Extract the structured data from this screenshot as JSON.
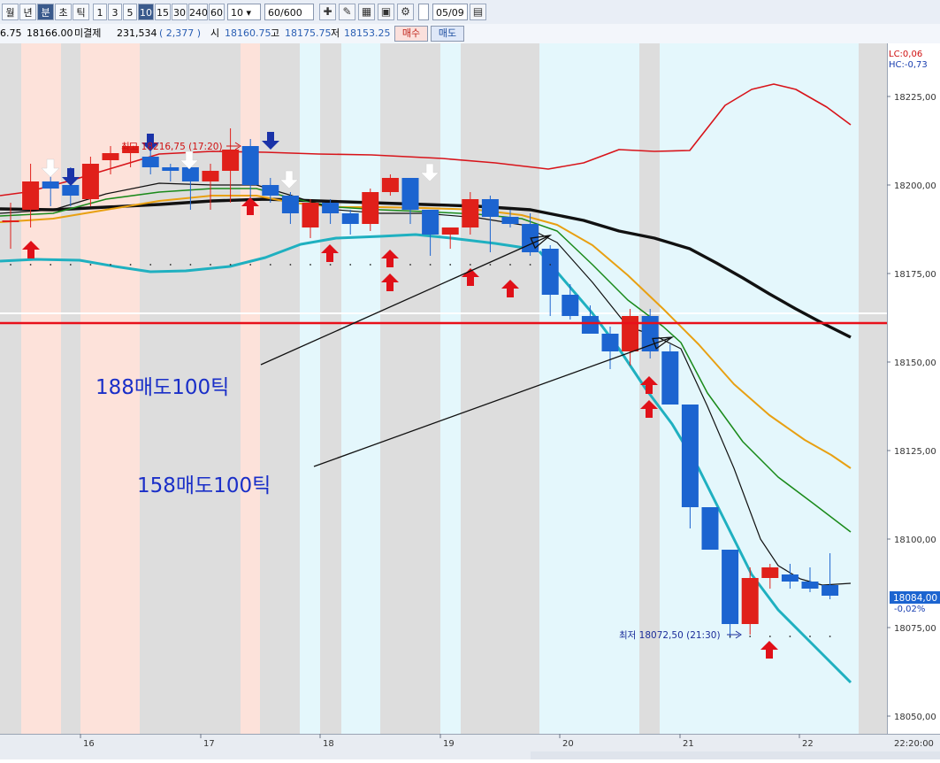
{
  "toolbar": {
    "period_buttons": [
      {
        "label": "월",
        "active": false
      },
      {
        "label": "년",
        "active": false
      },
      {
        "label": "분",
        "active": true
      },
      {
        "label": "초",
        "active": false
      },
      {
        "label": "틱",
        "active": false
      }
    ],
    "interval_buttons": [
      {
        "label": "1",
        "active": false
      },
      {
        "label": "3",
        "active": false
      },
      {
        "label": "5",
        "active": false
      },
      {
        "label": "10",
        "active": true
      },
      {
        "label": "15",
        "active": false
      },
      {
        "label": "30",
        "active": false
      },
      {
        "label": "240",
        "active": false
      },
      {
        "label": "60",
        "active": false
      }
    ],
    "interval_select": "10",
    "count_input": "60",
    "count_max": "/600",
    "tool_icons": [
      "crosshair-icon",
      "draw-tool-icon",
      "calendar-grid-icon",
      "save-icon",
      "gear-icon"
    ],
    "date_input": "05/09"
  },
  "quote": {
    "prev_price": "6.75",
    "price": "18166.00",
    "unfilled_label": "미결제",
    "unfilled_value": "231,534",
    "unfilled_change": "( 2,377 )",
    "open_label": "시",
    "open_value": "18160.75",
    "high_label": "고",
    "high_value": "18175.75",
    "low_label": "저",
    "low_value": "18153.25",
    "buy_label": "매수",
    "sell_label": "매도"
  },
  "chart_data": {
    "type": "candlestick",
    "y_axis": {
      "min": 18050,
      "max": 18240,
      "tick_labels": [
        "18225,00",
        "18200,00",
        "18175,00",
        "18150,00",
        "18125,00",
        "18100,00",
        "18075,00",
        "18050,00"
      ]
    },
    "x_axis": {
      "tick_labels": [
        "16",
        "17",
        "18",
        "19",
        "20",
        "21",
        "22"
      ],
      "end_label": "22:20:00"
    },
    "corner_labels": {
      "lc": "LC:0,06",
      "hc": "HC:-0,73"
    },
    "current_price_label": "18084,00",
    "current_change_label": "-0,02%",
    "high_annotation": "최고 18216,75 (17:20)",
    "low_annotation": "최저 18072,50 (21:30)",
    "horizontal_line_price": 18161,
    "annotation_1": "188매도100틱",
    "annotation_2": "158매도100틱",
    "candles": [
      {
        "o": 18190,
        "h": 18195,
        "l": 18182,
        "c": 18190
      },
      {
        "o": 18193,
        "h": 18206,
        "l": 18188,
        "c": 18201
      },
      {
        "o": 18201,
        "h": 18203,
        "l": 18194,
        "c": 18199
      },
      {
        "o": 18200,
        "h": 18205,
        "l": 18194,
        "c": 18197
      },
      {
        "o": 18196,
        "h": 18208,
        "l": 18194,
        "c": 18206
      },
      {
        "o": 18207,
        "h": 18211,
        "l": 18203,
        "c": 18209
      },
      {
        "o": 18209,
        "h": 18212,
        "l": 18205,
        "c": 18211
      },
      {
        "o": 18208,
        "h": 18212,
        "l": 18203,
        "c": 18205
      },
      {
        "o": 18205,
        "h": 18206,
        "l": 18201,
        "c": 18204
      },
      {
        "o": 18205,
        "h": 18207,
        "l": 18193,
        "c": 18201
      },
      {
        "o": 18201,
        "h": 18206,
        "l": 18193,
        "c": 18204
      },
      {
        "o": 18204,
        "h": 18216,
        "l": 18195,
        "c": 18210
      },
      {
        "o": 18211,
        "h": 18213,
        "l": 18196,
        "c": 18200
      },
      {
        "o": 18200,
        "h": 18202,
        "l": 18195,
        "c": 18197
      },
      {
        "o": 18197,
        "h": 18198,
        "l": 18189,
        "c": 18192
      },
      {
        "o": 18188,
        "h": 18196,
        "l": 18185,
        "c": 18195
      },
      {
        "o": 18195,
        "h": 18196,
        "l": 18189,
        "c": 18192
      },
      {
        "o": 18192,
        "h": 18193,
        "l": 18186,
        "c": 18189
      },
      {
        "o": 18189,
        "h": 18199,
        "l": 18187,
        "c": 18198
      },
      {
        "o": 18198,
        "h": 18203,
        "l": 18197,
        "c": 18202
      },
      {
        "o": 18202,
        "h": 18202,
        "l": 18189,
        "c": 18193
      },
      {
        "o": 18193,
        "h": 18193,
        "l": 18180,
        "c": 18186
      },
      {
        "o": 18186,
        "h": 18188,
        "l": 18182,
        "c": 18188
      },
      {
        "o": 18188,
        "h": 18198,
        "l": 18186,
        "c": 18196
      },
      {
        "o": 18196,
        "h": 18197,
        "l": 18181,
        "c": 18191
      },
      {
        "o": 18191,
        "h": 18193,
        "l": 18188,
        "c": 18189
      },
      {
        "o": 18189,
        "h": 18192,
        "l": 18180,
        "c": 18181
      },
      {
        "o": 18182,
        "h": 18183,
        "l": 18163,
        "c": 18169
      },
      {
        "o": 18169,
        "h": 18172,
        "l": 18162,
        "c": 18163
      },
      {
        "o": 18163,
        "h": 18166,
        "l": 18158,
        "c": 18158
      },
      {
        "o": 18158,
        "h": 18160,
        "l": 18148,
        "c": 18153
      },
      {
        "o": 18153,
        "h": 18165,
        "l": 18149,
        "c": 18163
      },
      {
        "o": 18163,
        "h": 18165,
        "l": 18151,
        "c": 18153
      },
      {
        "o": 18153,
        "h": 18155,
        "l": 18138,
        "c": 18138
      },
      {
        "o": 18138,
        "h": 18138,
        "l": 18103,
        "c": 18109
      },
      {
        "o": 18109,
        "h": 18109,
        "l": 18097,
        "c": 18097
      },
      {
        "o": 18097,
        "h": 18097,
        "l": 18072,
        "c": 18076
      },
      {
        "o": 18076,
        "h": 18092,
        "l": 18073,
        "c": 18089
      },
      {
        "o": 18089,
        "h": 18093,
        "l": 18086,
        "c": 18092
      },
      {
        "o": 18090,
        "h": 18093,
        "l": 18086,
        "c": 18088
      },
      {
        "o": 18088,
        "h": 18092,
        "l": 18085,
        "c": 18086
      },
      {
        "o": 18087,
        "h": 18096,
        "l": 18083,
        "c": 18084
      }
    ]
  }
}
